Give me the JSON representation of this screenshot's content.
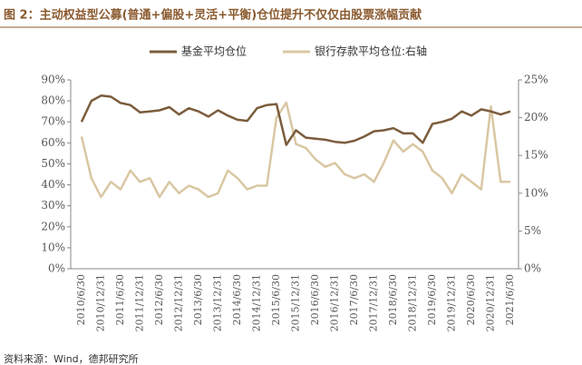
{
  "chart_data": {
    "type": "line",
    "title": "图 2：主动权益型公募(普通+偏股+灵活+平衡)仓位提升不仅仅由股票涨幅贡献",
    "source": "资料来源：Wind，德邦研究所",
    "categories": [
      "2010/6/30",
      null,
      "2010/12/31",
      null,
      "2011/6/30",
      null,
      "2011/12/31",
      null,
      "2012/6/30",
      null,
      "2012/12/31",
      null,
      "2013/6/30",
      null,
      "2013/12/31",
      null,
      "2014/6/30",
      null,
      "2014/12/31",
      null,
      "2015/6/30",
      null,
      "2015/12/31",
      null,
      "2016/6/30",
      null,
      "2016/12/31",
      null,
      "2017/6/30",
      null,
      "2017/12/31",
      null,
      "2018/6/30",
      null,
      "2018/12/31",
      null,
      "2019/6/30",
      null,
      "2019/12/31",
      null,
      "2020/6/30",
      null,
      "2020/12/31",
      null,
      "2021/6/30"
    ],
    "series": [
      {
        "name": "基金平均仓位",
        "color": "#7b5c3c",
        "values": [
          70,
          80,
          82.5,
          82,
          79,
          78,
          74.5,
          75,
          75.5,
          77,
          73.5,
          76.5,
          75,
          72.5,
          75.5,
          73,
          71,
          70.5,
          76.5,
          78,
          78.5,
          59,
          66,
          62.5,
          62,
          61.5,
          60.5,
          60,
          61,
          63,
          65.5,
          66,
          67,
          64.5,
          64.5,
          60,
          69,
          70,
          71.5,
          75,
          73,
          76,
          75,
          73.5,
          75
        ]
      },
      {
        "name": "银行存款平均仓位:右轴",
        "color": "#d9c7a3",
        "axis": "y2",
        "values": [
          17.5,
          12,
          9.5,
          11.5,
          10.5,
          13,
          11.5,
          12,
          9.5,
          11.5,
          10,
          11,
          10.5,
          9.5,
          10,
          13,
          12,
          10.5,
          11,
          11,
          20,
          22,
          16.5,
          16,
          14.5,
          13.5,
          14,
          12.5,
          12,
          12.5,
          11.5,
          14,
          17,
          15.5,
          16.5,
          15.5,
          13,
          12,
          10,
          12.5,
          11.5,
          10.5,
          21.5,
          11.5,
          11.5
        ]
      }
    ],
    "ylim": [
      0,
      90
    ],
    "yticks": [
      {
        "value": 0,
        "label": "0%"
      },
      {
        "value": 10,
        "label": "10%"
      },
      {
        "value": 20,
        "label": "20%"
      },
      {
        "value": 30,
        "label": "30%"
      },
      {
        "value": 40,
        "label": "40%"
      },
      {
        "value": 50,
        "label": "50%"
      },
      {
        "value": 60,
        "label": "60%"
      },
      {
        "value": 70,
        "label": "70%"
      },
      {
        "value": 80,
        "label": "80%"
      },
      {
        "value": 90,
        "label": "90%"
      }
    ],
    "y2lim": [
      0,
      25
    ],
    "y2ticks": [
      {
        "value": 0,
        "label": "0%"
      },
      {
        "value": 5,
        "label": "5%"
      },
      {
        "value": 10,
        "label": "10%"
      },
      {
        "value": 15,
        "label": "15%"
      },
      {
        "value": 20,
        "label": "20%"
      },
      {
        "value": 25,
        "label": "25%"
      }
    ],
    "legend": "top"
  }
}
